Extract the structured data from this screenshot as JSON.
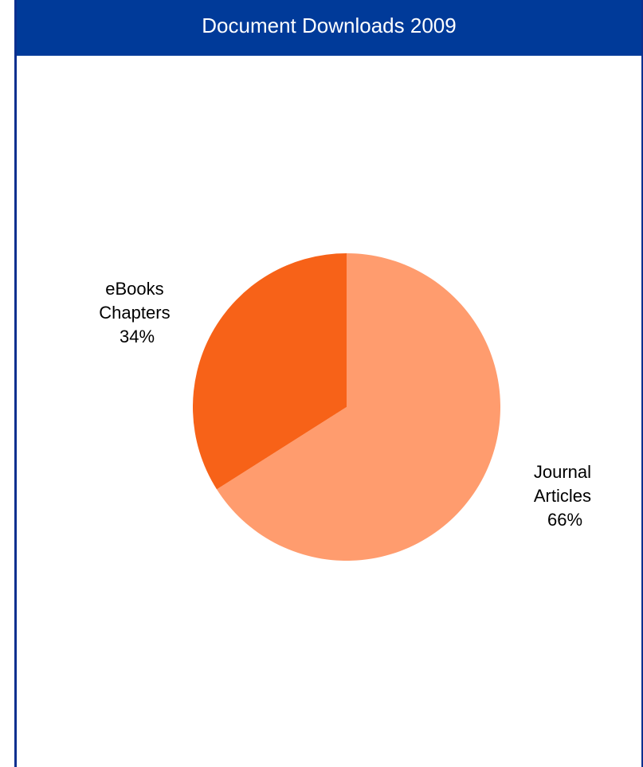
{
  "chart_data": {
    "type": "pie",
    "title": "Document Downloads 2009",
    "slices": [
      {
        "label_lines": [
          "Journal",
          "Articles"
        ],
        "percent_label": "66%",
        "value": 66,
        "color": "#ff9c6e"
      },
      {
        "label_lines": [
          "eBooks",
          "Chapters"
        ],
        "percent_label": "34%",
        "value": 34,
        "color": "#f76218"
      }
    ],
    "start_angle_deg": 0,
    "direction": "clockwise",
    "legend": "none",
    "colors": {
      "title_bar": "#003a99",
      "title_text": "#ffffff",
      "border": "#0a2f8f"
    }
  }
}
